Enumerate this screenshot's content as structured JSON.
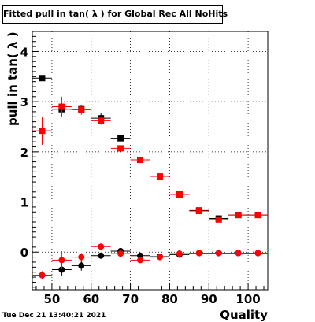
{
  "title": "Fitted pull in tan( λ ) for Global Rec All NoHits",
  "timestamp": "Tue Dec 21 13:40:21 2021",
  "chart_data": {
    "type": "scatter",
    "title": "Fitted pull in tan( λ ) for Global Rec All NoHits",
    "xlabel": "Quality",
    "ylabel": "pull in tan( λ )",
    "xlim": [
      45,
      105
    ],
    "ylim": [
      -0.75,
      4.4
    ],
    "xticks": [
      50,
      60,
      70,
      80,
      90,
      100
    ],
    "yticks": [
      0,
      1,
      2,
      3,
      4
    ],
    "grid": true,
    "legend": "none",
    "x": [
      47.5,
      52.5,
      57.5,
      62.5,
      67.5,
      72.5,
      77.5,
      82.5,
      87.5,
      92.5,
      97.5,
      102.5
    ],
    "series": [
      {
        "marker": "square",
        "color": "#000000",
        "values": [
          3.47,
          2.85,
          2.85,
          2.67,
          2.27,
          1.84,
          null,
          1.15,
          0.83,
          0.67,
          0.74,
          0.74
        ],
        "errors": [
          0,
          0.12,
          0.08,
          0.1,
          0.06,
          0.05,
          0,
          0.05,
          0.04,
          0.05,
          0.04,
          0.04
        ]
      },
      {
        "marker": "square",
        "color": "#ff0000",
        "values": [
          2.42,
          2.9,
          2.84,
          2.62,
          2.07,
          1.84,
          1.51,
          1.15,
          0.82,
          0.65,
          0.74,
          0.74
        ],
        "errors": [
          0.28,
          0.2,
          0.1,
          0.08,
          0.06,
          0.05,
          0.04,
          0.05,
          0.04,
          0.05,
          0.04,
          0.04
        ]
      },
      {
        "marker": "circle",
        "color": "#000000",
        "values": [
          -0.46,
          -0.35,
          -0.27,
          -0.07,
          0.02,
          -0.07,
          -0.09,
          -0.05,
          -0.02,
          -0.02,
          -0.02,
          -0.02
        ],
        "errors": [
          0.05,
          0.12,
          0.1,
          0.06,
          0.05,
          0.05,
          0.04,
          0.04,
          0.03,
          0.03,
          0.03,
          0.03
        ]
      },
      {
        "marker": "circle",
        "color": "#ff0000",
        "values": [
          -0.46,
          -0.16,
          -0.1,
          0.11,
          -0.03,
          -0.16,
          -0.1,
          -0.03,
          -0.02,
          -0.02,
          -0.02,
          -0.02
        ],
        "errors": [
          0.08,
          0.18,
          0.08,
          0.06,
          0.05,
          0.05,
          0.04,
          0.04,
          0.03,
          0.03,
          0.03,
          0.03
        ]
      }
    ]
  }
}
